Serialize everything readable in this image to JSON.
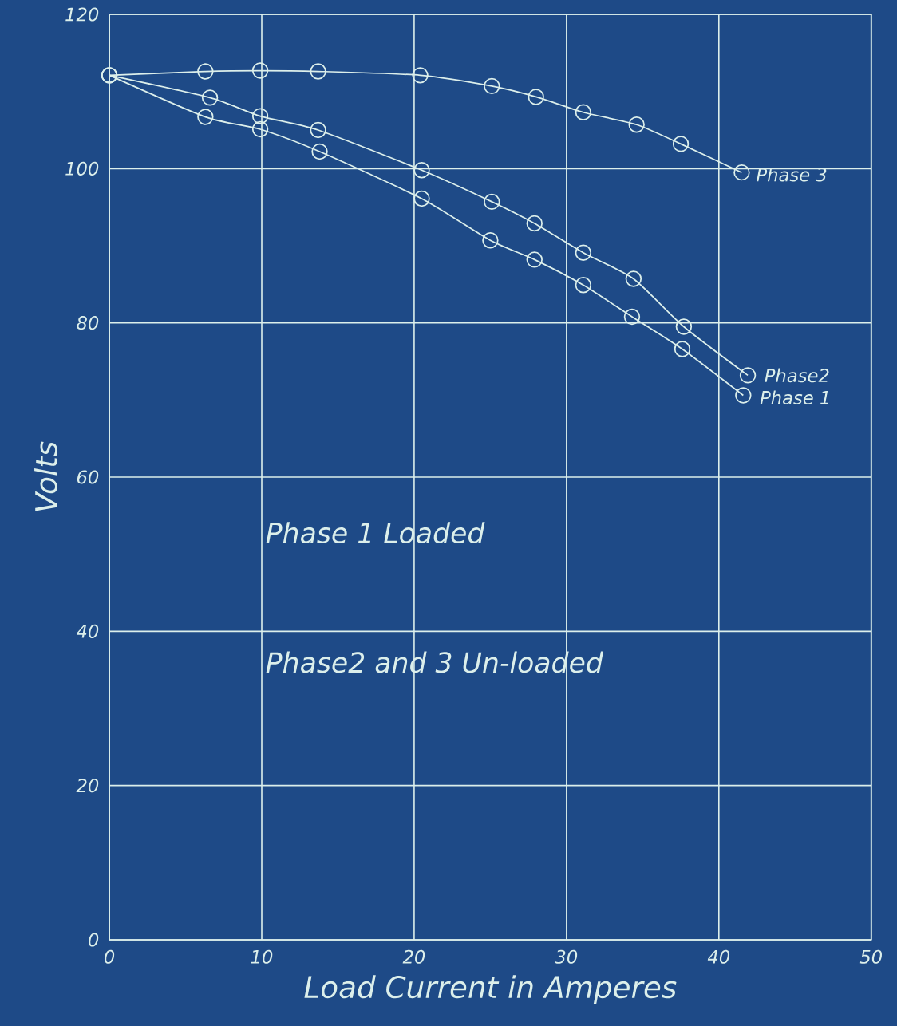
{
  "chart_data": {
    "type": "line",
    "xlabel": "Load Current in Amperes",
    "ylabel": "Volts",
    "xlim": [
      0,
      50
    ],
    "ylim": [
      0,
      120
    ],
    "xticks": [
      0,
      10,
      20,
      30,
      40,
      50
    ],
    "yticks": [
      0,
      20,
      40,
      60,
      80,
      100,
      120
    ],
    "grid": true,
    "legend": false,
    "marker": "circle",
    "line_style": "solid",
    "annotations": [
      "Phase 1 Loaded",
      "Phase2 and 3 Un-loaded"
    ],
    "series": [
      {
        "name": "Phase 3",
        "color": "#dcefeb",
        "x": [
          0,
          6.3,
          9.9,
          13.7,
          20.4,
          25.1,
          28,
          31.1,
          34.6,
          37.5,
          41.5
        ],
        "values": [
          112.1,
          112.6,
          112.7,
          112.6,
          112.1,
          110.7,
          109.3,
          107.3,
          105.7,
          103.2,
          99.5
        ]
      },
      {
        "name": "Phase2",
        "color": "#dcefeb",
        "x": [
          0,
          6.6,
          9.9,
          13.7,
          20.5,
          25.1,
          27.9,
          31.1,
          34.4,
          37.7,
          41.9
        ],
        "values": [
          112.1,
          109.2,
          106.8,
          105.0,
          99.8,
          95.7,
          92.9,
          89.1,
          85.7,
          79.5,
          73.2
        ]
      },
      {
        "name": "Phase 1",
        "color": "#dcefeb",
        "x": [
          0,
          6.3,
          9.9,
          13.8,
          20.5,
          25.0,
          27.9,
          31.1,
          34.3,
          37.6,
          41.6
        ],
        "values": [
          112.1,
          106.7,
          105.1,
          102.2,
          96.1,
          90.7,
          88.2,
          84.9,
          80.8,
          76.6,
          70.6
        ]
      }
    ]
  }
}
